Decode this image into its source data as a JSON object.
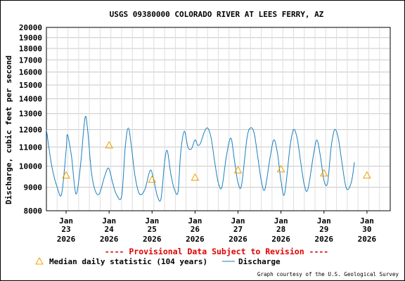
{
  "chart_data": {
    "type": "line",
    "title": "USGS 09380000 COLORADO RIVER AT LEES FERRY, AZ",
    "ylabel": "Discharge, cubic feet per second",
    "xlabel": "",
    "ylim": [
      8000,
      20000
    ],
    "y_scale": "log",
    "y_ticks": [
      "8000",
      "9000",
      "10000",
      "11000",
      "12000",
      "13000",
      "14000",
      "15000",
      "16000",
      "17000",
      "18000",
      "19000",
      "20000"
    ],
    "grid": true,
    "x_ticks": [
      {
        "month": "Jan",
        "day": "23",
        "year": "2026"
      },
      {
        "month": "Jan",
        "day": "24",
        "year": "2026"
      },
      {
        "month": "Jan",
        "day": "25",
        "year": "2026"
      },
      {
        "month": "Jan",
        "day": "26",
        "year": "2026"
      },
      {
        "month": "Jan",
        "day": "27",
        "year": "2026"
      },
      {
        "month": "Jan",
        "day": "28",
        "year": "2026"
      },
      {
        "month": "Jan",
        "day": "29",
        "year": "2026"
      },
      {
        "month": "Jan",
        "day": "30",
        "year": "2026"
      }
    ],
    "xlim": [
      "2026-01-22 13:00",
      "2026-01-30 13:00"
    ],
    "series": [
      {
        "name": "Discharge",
        "color": "#1a7fbf",
        "points": [
          [
            "2026-01-22 13:00",
            12000
          ],
          [
            "2026-01-22 16:00",
            10000
          ],
          [
            "2026-01-22 19:00",
            9000
          ],
          [
            "2026-01-22 21:30",
            8700
          ],
          [
            "2026-01-23 00:00",
            10800
          ],
          [
            "2026-01-23 00:45",
            11700
          ],
          [
            "2026-01-23 03:00",
            10500
          ],
          [
            "2026-01-23 05:30",
            8700
          ],
          [
            "2026-01-23 08:00",
            10000
          ],
          [
            "2026-01-23 10:30",
            12700
          ],
          [
            "2026-01-23 12:00",
            12000
          ],
          [
            "2026-01-23 14:00",
            9800
          ],
          [
            "2026-01-23 16:00",
            8900
          ],
          [
            "2026-01-23 18:30",
            8700
          ],
          [
            "2026-01-23 21:30",
            9500
          ],
          [
            "2026-01-23 23:45",
            9900
          ],
          [
            "2026-01-24 02:00",
            9200
          ],
          [
            "2026-01-24 04:00",
            8700
          ],
          [
            "2026-01-24 07:00",
            8600
          ],
          [
            "2026-01-24 09:00",
            11000
          ],
          [
            "2026-01-24 10:45",
            12100
          ],
          [
            "2026-01-24 12:30",
            11000
          ],
          [
            "2026-01-24 14:30",
            9500
          ],
          [
            "2026-01-24 17:00",
            8700
          ],
          [
            "2026-01-24 20:00",
            8900
          ],
          [
            "2026-01-24 23:00",
            9800
          ],
          [
            "2026-01-25 01:00",
            9300
          ],
          [
            "2026-01-25 03:00",
            8600
          ],
          [
            "2026-01-25 05:00",
            8500
          ],
          [
            "2026-01-25 07:00",
            10200
          ],
          [
            "2026-01-25 08:30",
            10800
          ],
          [
            "2026-01-25 10:30",
            9600
          ],
          [
            "2026-01-25 12:30",
            8900
          ],
          [
            "2026-01-25 14:30",
            8800
          ],
          [
            "2026-01-25 16:00",
            10700
          ],
          [
            "2026-01-25 18:00",
            11900
          ],
          [
            "2026-01-25 20:00",
            11000
          ],
          [
            "2026-01-25 22:00",
            10900
          ],
          [
            "2026-01-26 00:00",
            11400
          ],
          [
            "2026-01-26 01:30",
            11100
          ],
          [
            "2026-01-26 03:00",
            11200
          ],
          [
            "2026-01-26 05:00",
            11800
          ],
          [
            "2026-01-26 07:00",
            12100
          ],
          [
            "2026-01-26 09:00",
            11500
          ],
          [
            "2026-01-26 11:00",
            10200
          ],
          [
            "2026-01-26 13:00",
            9200
          ],
          [
            "2026-01-26 15:00",
            9000
          ],
          [
            "2026-01-26 17:30",
            10500
          ],
          [
            "2026-01-26 20:00",
            11500
          ],
          [
            "2026-01-26 22:00",
            10300
          ],
          [
            "2026-01-27 00:00",
            9200
          ],
          [
            "2026-01-27 02:00",
            9100
          ],
          [
            "2026-01-27 05:00",
            11500
          ],
          [
            "2026-01-27 07:00",
            12100
          ],
          [
            "2026-01-27 09:00",
            11800
          ],
          [
            "2026-01-27 11:00",
            10500
          ],
          [
            "2026-01-27 13:00",
            9300
          ],
          [
            "2026-01-27 15:00",
            8900
          ],
          [
            "2026-01-27 18:00",
            10500
          ],
          [
            "2026-01-27 20:00",
            11400
          ],
          [
            "2026-01-27 22:00",
            10700
          ],
          [
            "2026-01-28 00:00",
            9300
          ],
          [
            "2026-01-28 02:00",
            8700
          ],
          [
            "2026-01-28 05:00",
            11000
          ],
          [
            "2026-01-28 07:00",
            12000
          ],
          [
            "2026-01-28 09:00",
            11500
          ],
          [
            "2026-01-28 11:00",
            10200
          ],
          [
            "2026-01-28 13:00",
            9100
          ],
          [
            "2026-01-28 15:00",
            8900
          ],
          [
            "2026-01-28 18:00",
            10500
          ],
          [
            "2026-01-28 20:00",
            11400
          ],
          [
            "2026-01-28 22:00",
            10500
          ],
          [
            "2026-01-29 00:00",
            9300
          ],
          [
            "2026-01-29 02:00",
            9200
          ],
          [
            "2026-01-29 04:00",
            11000
          ],
          [
            "2026-01-29 06:00",
            12000
          ],
          [
            "2026-01-29 08:00",
            11500
          ],
          [
            "2026-01-29 10:00",
            10200
          ],
          [
            "2026-01-29 12:00",
            9100
          ],
          [
            "2026-01-29 13:30",
            8900
          ],
          [
            "2026-01-29 15:30",
            9300
          ],
          [
            "2026-01-29 17:00",
            10200
          ]
        ]
      },
      {
        "name": "Median daily statistic (104 years)",
        "color": "#f0a000",
        "marker": "triangle",
        "points": [
          [
            "2026-01-23 00:00",
            9550
          ],
          [
            "2026-01-24 00:00",
            11100
          ],
          [
            "2026-01-25 00:00",
            9350
          ],
          [
            "2026-01-26 00:00",
            9450
          ],
          [
            "2026-01-27 00:00",
            9800
          ],
          [
            "2026-01-28 00:00",
            9850
          ],
          [
            "2026-01-29 00:00",
            9650
          ],
          [
            "2026-01-30 00:00",
            9550
          ]
        ]
      }
    ]
  },
  "notice": "---- Provisional Data Subject to Revision ----",
  "legend": {
    "median_label": "Median daily statistic (104 years)",
    "discharge_label": "Discharge"
  },
  "credit": "Graph courtesy of the U.S. Geological Survey"
}
